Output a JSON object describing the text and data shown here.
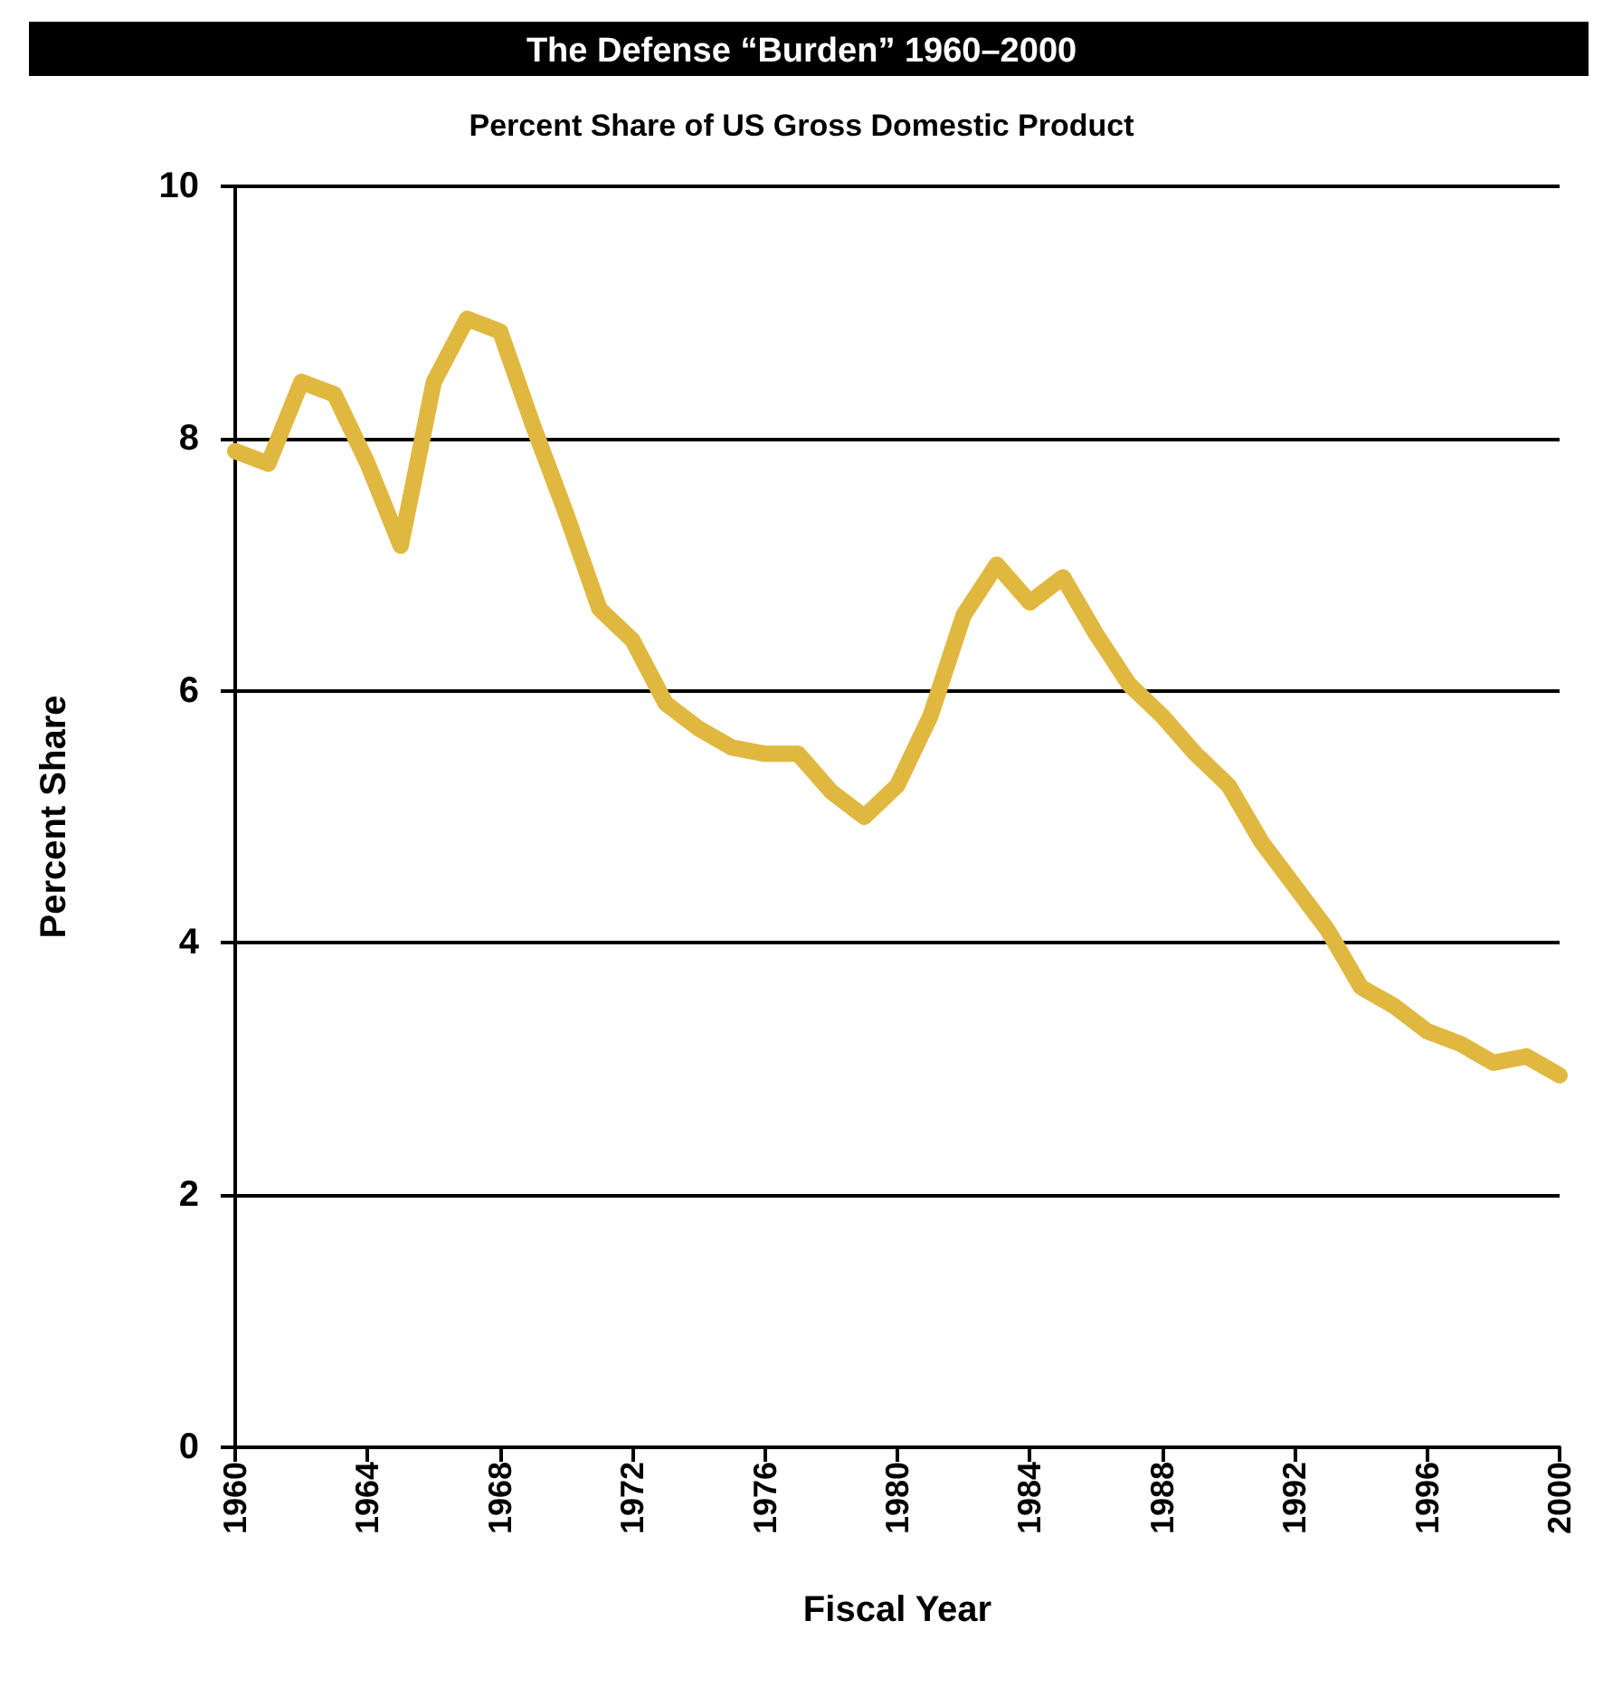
{
  "chart_data": {
    "type": "line",
    "title": "The Defense “Burden” 1960–2000",
    "subtitle": "Percent Share of US Gross Domestic Product",
    "xlabel": "Fiscal Year",
    "ylabel": "Percent Share",
    "x": [
      1960,
      1961,
      1962,
      1963,
      1964,
      1965,
      1966,
      1967,
      1968,
      1969,
      1970,
      1971,
      1972,
      1973,
      1974,
      1975,
      1976,
      1977,
      1978,
      1979,
      1980,
      1981,
      1982,
      1983,
      1984,
      1985,
      1986,
      1987,
      1988,
      1989,
      1990,
      1991,
      1992,
      1993,
      1994,
      1995,
      1996,
      1997,
      1998,
      1999,
      2000
    ],
    "series": [
      {
        "color": "#e0b840",
        "values": [
          7.9,
          7.8,
          8.45,
          8.35,
          7.8,
          7.15,
          8.45,
          8.95,
          8.85,
          8.1,
          7.4,
          6.65,
          6.4,
          5.9,
          5.7,
          5.55,
          5.5,
          5.5,
          5.2,
          5.0,
          5.25,
          5.8,
          6.6,
          7.0,
          6.7,
          6.9,
          6.45,
          6.05,
          5.8,
          5.5,
          5.25,
          4.8,
          4.45,
          4.1,
          3.65,
          3.5,
          3.3,
          3.2,
          3.05,
          3.1,
          2.95
        ]
      }
    ],
    "xlim": [
      1960,
      2000
    ],
    "xticks": [
      1960,
      1964,
      1968,
      1972,
      1976,
      1980,
      1984,
      1988,
      1992,
      1996,
      2000
    ],
    "ylim": [
      0,
      10
    ],
    "yticks": [
      0,
      2,
      4,
      6,
      8,
      10
    ],
    "grid": "y",
    "line_style": "solid"
  }
}
